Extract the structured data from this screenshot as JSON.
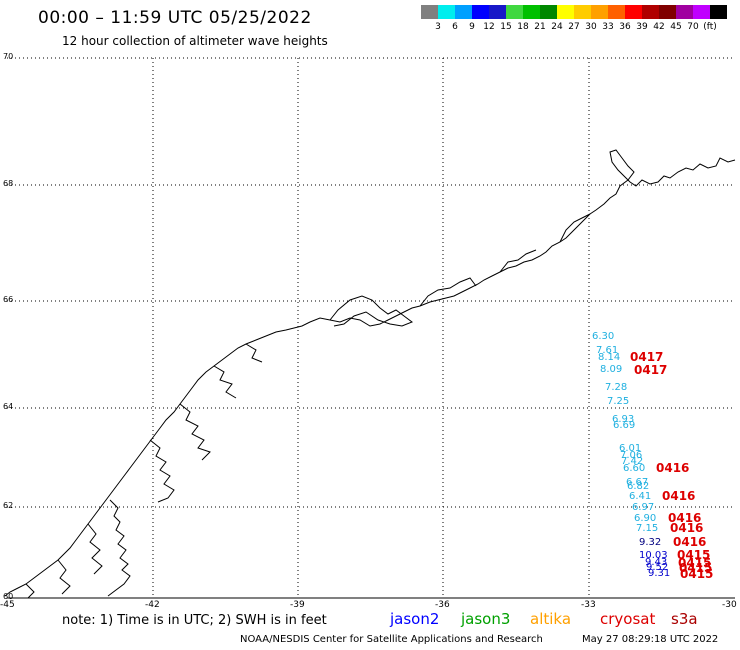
{
  "header": {
    "title": "00:00 – 11:59 UTC 05/25/2022",
    "subtitle": "12 hour collection of altimeter wave heights"
  },
  "scale": {
    "colors": [
      "#808080",
      "#00eeee",
      "#00a0ff",
      "#0000ff",
      "#1818c8",
      "#40d840",
      "#00c000",
      "#008800",
      "#ffff00",
      "#ffcc00",
      "#ffa000",
      "#ff6000",
      "#ff0000",
      "#b00000",
      "#800000",
      "#a000a0",
      "#c000ff",
      "#000000"
    ],
    "labels": [
      "3",
      "6",
      "9",
      "12",
      "15",
      "18",
      "21",
      "24",
      "27",
      "30",
      "33",
      "36",
      "39",
      "42",
      "45",
      "70",
      "(ft)"
    ]
  },
  "map": {
    "lat_labels": [
      "70",
      "68",
      "66",
      "64",
      "62",
      "60"
    ],
    "lon_labels": [
      "-45",
      "-42",
      "-39",
      "-36",
      "-33",
      "-30"
    ],
    "wave_points": [
      {
        "text": "6.30",
        "color": "#20b0e0"
      },
      {
        "text": "7.61",
        "color": "#20b0e0"
      },
      {
        "text": "8.14",
        "color": "#20b0e0"
      },
      {
        "text": "8.09",
        "color": "#20b0e0"
      },
      {
        "text": "7.28",
        "color": "#20b0e0"
      },
      {
        "text": "7.25",
        "color": "#20b0e0"
      },
      {
        "text": "6.93",
        "color": "#20b0e0"
      },
      {
        "text": "6.69",
        "color": "#20b0e0"
      },
      {
        "text": "6.01",
        "color": "#20b0e0"
      },
      {
        "text": "7.06",
        "color": "#20b0e0"
      },
      {
        "text": "7.42",
        "color": "#20b0e0"
      },
      {
        "text": "6.60",
        "color": "#20b0e0"
      },
      {
        "text": "6.67",
        "color": "#20b0e0"
      },
      {
        "text": "6.82",
        "color": "#20b0e0"
      },
      {
        "text": "6.41",
        "color": "#20b0e0"
      },
      {
        "text": "6.97",
        "color": "#20b0e0"
      },
      {
        "text": "6.90",
        "color": "#20b0e0"
      },
      {
        "text": "7.15",
        "color": "#20b0e0"
      },
      {
        "text": "9.32",
        "color": "#000080"
      },
      {
        "text": "10.03",
        "color": "#0000cc"
      },
      {
        "text": "9.43",
        "color": "#0000cc"
      },
      {
        "text": "9.52",
        "color": "#0000cc"
      },
      {
        "text": "9.31",
        "color": "#0000cc"
      }
    ],
    "cryosat_labels": [
      "0417",
      "0417",
      "0416",
      "0416",
      "0416",
      "0416",
      "0416",
      "0415",
      "0415",
      "0415",
      "0415"
    ]
  },
  "footer": {
    "note": "note: 1) Time is in UTC; 2) SWH is in feet",
    "satellites": [
      {
        "name": "jason2",
        "color": "#0000ff"
      },
      {
        "name": "jason3",
        "color": "#00a000"
      },
      {
        "name": "altika",
        "color": "#ffa000"
      },
      {
        "name": "cryosat",
        "color": "#dd0000"
      },
      {
        "name": "s3a",
        "color": "#aa0000"
      }
    ],
    "credit": "NOAA/NESDIS Center for Satellite Applications and Research",
    "timestamp": "May 27 08:29:18 UTC 2022"
  }
}
